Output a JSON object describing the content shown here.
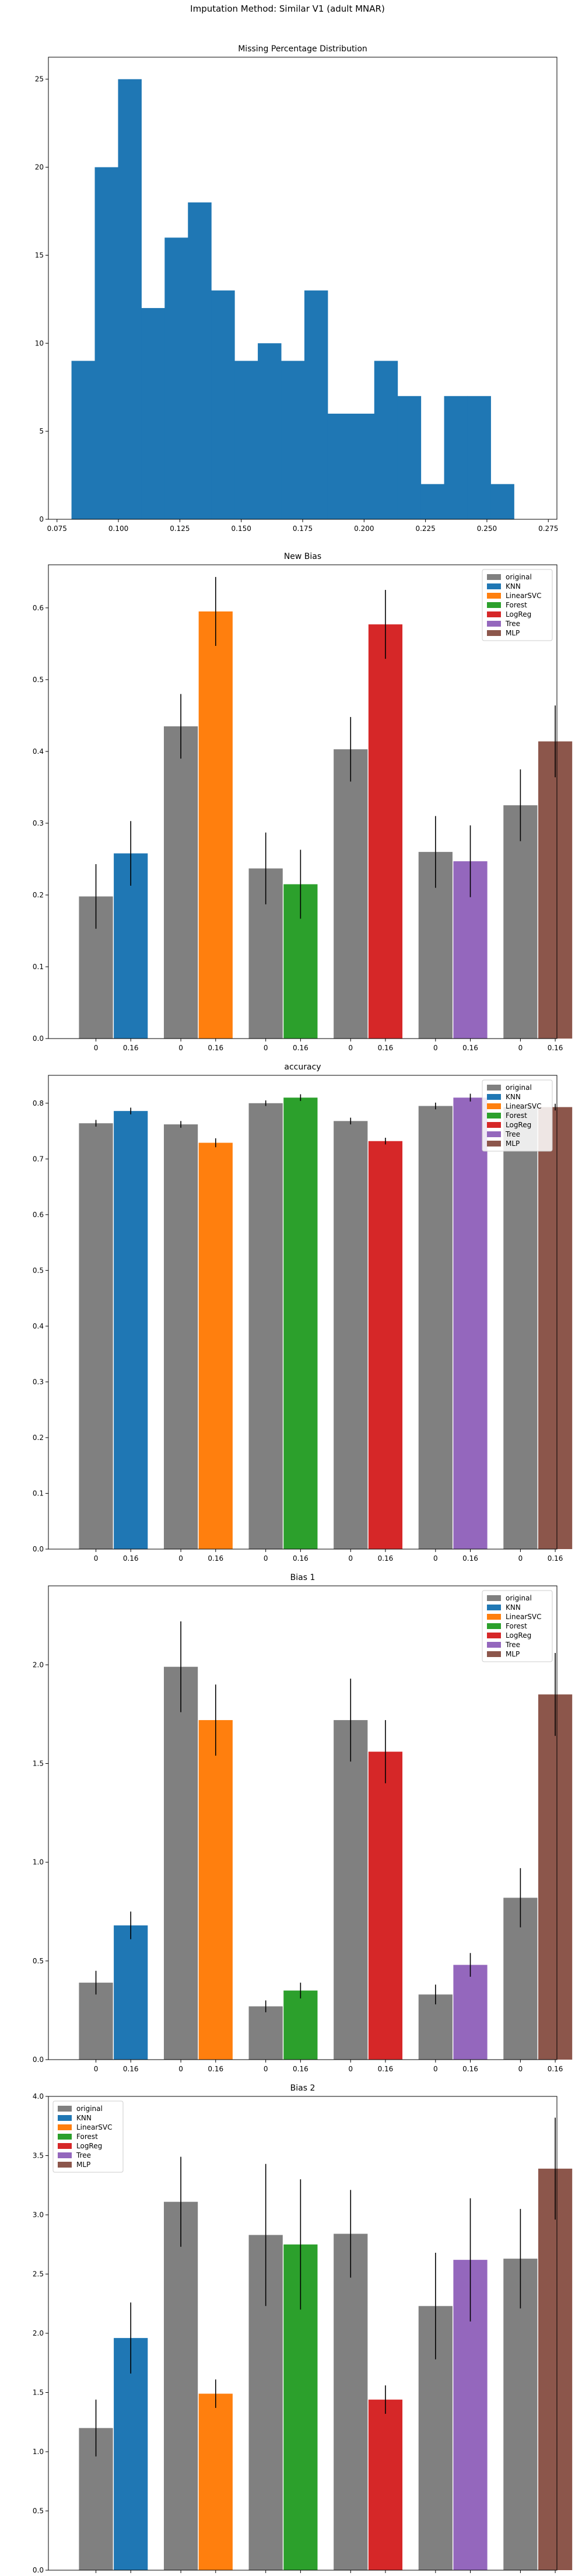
{
  "figure": {
    "suptitle": "Imputation Method: Similar V1 (adult MNAR)"
  },
  "colors": {
    "original": "#808080",
    "KNN": "#1f77b4",
    "LinearSVC": "#ff7f0e",
    "Forest": "#2ca02c",
    "LogReg": "#d62728",
    "Tree": "#9467bd",
    "MLP": "#8c564b",
    "hist": "#1f77b4"
  },
  "chart_data": [
    {
      "type": "bar",
      "subtype": "histogram",
      "title": "Missing Percentage Distribution",
      "xlim": [
        0.0715,
        0.2785
      ],
      "ylim": [
        0,
        26.25
      ],
      "xticks": [
        "0.075",
        "0.100",
        "0.125",
        "0.150",
        "0.175",
        "0.200",
        "0.225",
        "0.250",
        "0.275"
      ],
      "xtick_values": [
        0.075,
        0.1,
        0.125,
        0.15,
        0.175,
        0.2,
        0.225,
        0.25,
        0.275
      ],
      "yticks": [
        "0",
        "5",
        "10",
        "15",
        "20",
        "25"
      ],
      "ytick_values": [
        0,
        5,
        10,
        15,
        20,
        25
      ],
      "bin_start": 0.0809,
      "bin_width": 0.00948,
      "values": [
        9,
        20,
        25,
        12,
        16,
        18,
        13,
        9,
        10,
        9,
        13,
        6,
        6,
        9,
        7,
        2,
        7,
        7,
        2
      ],
      "grid": false
    },
    {
      "type": "bar",
      "title": "New Bias",
      "categories": [
        "0",
        "0.16"
      ],
      "methods": [
        "KNN",
        "LinearSVC",
        "Forest",
        "LogReg",
        "Tree",
        "MLP"
      ],
      "original_values": [
        0.198,
        0.435,
        0.237,
        0.403,
        0.26,
        0.325
      ],
      "original_errors": [
        0.045,
        0.045,
        0.05,
        0.045,
        0.05,
        0.05
      ],
      "method_values": [
        0.258,
        0.595,
        0.215,
        0.577,
        0.247,
        0.414
      ],
      "method_errors": [
        0.045,
        0.048,
        0.048,
        0.048,
        0.05,
        0.05
      ],
      "ylim": [
        0,
        0.66
      ],
      "yticks": [
        "0.0",
        "0.1",
        "0.2",
        "0.3",
        "0.4",
        "0.5",
        "0.6"
      ],
      "ytick_values": [
        0,
        0.1,
        0.2,
        0.3,
        0.4,
        0.5,
        0.6
      ],
      "legend": [
        "original",
        "KNN",
        "LinearSVC",
        "Forest",
        "LogReg",
        "Tree",
        "MLP"
      ],
      "legend_position": "top-right"
    },
    {
      "type": "bar",
      "title": "accuracy",
      "categories": [
        "0",
        "0.16"
      ],
      "methods": [
        "KNN",
        "LinearSVC",
        "Forest",
        "LogReg",
        "Tree",
        "MLP"
      ],
      "original_values": [
        0.764,
        0.762,
        0.8,
        0.768,
        0.795,
        0.793
      ],
      "original_errors": [
        0.006,
        0.006,
        0.005,
        0.006,
        0.006,
        0.006
      ],
      "method_values": [
        0.786,
        0.729,
        0.81,
        0.732,
        0.81,
        0.793
      ],
      "method_errors": [
        0.006,
        0.008,
        0.006,
        0.006,
        0.007,
        0.006
      ],
      "ylim": [
        0,
        0.85
      ],
      "yticks": [
        "0.0",
        "0.1",
        "0.2",
        "0.3",
        "0.4",
        "0.5",
        "0.6",
        "0.7",
        "0.8"
      ],
      "ytick_values": [
        0,
        0.1,
        0.2,
        0.3,
        0.4,
        0.5,
        0.6,
        0.7,
        0.8
      ],
      "legend": [
        "original",
        "KNN",
        "LinearSVC",
        "Forest",
        "LogReg",
        "Tree",
        "MLP"
      ],
      "legend_position": "top-right"
    },
    {
      "type": "bar",
      "title": "Bias 1",
      "categories": [
        "0",
        "0.16"
      ],
      "methods": [
        "KNN",
        "LinearSVC",
        "Forest",
        "LogReg",
        "Tree",
        "MLP"
      ],
      "original_values": [
        0.39,
        1.99,
        0.27,
        1.72,
        0.33,
        0.82
      ],
      "original_errors": [
        0.06,
        0.23,
        0.03,
        0.21,
        0.05,
        0.15
      ],
      "method_values": [
        0.68,
        1.72,
        0.35,
        1.56,
        0.48,
        1.85
      ],
      "method_errors": [
        0.07,
        0.18,
        0.04,
        0.16,
        0.06,
        0.21
      ],
      "ylim": [
        0,
        2.4
      ],
      "yticks": [
        "0.0",
        "0.5",
        "1.0",
        "1.5",
        "2.0"
      ],
      "ytick_values": [
        0,
        0.5,
        1.0,
        1.5,
        2.0
      ],
      "legend": [
        "original",
        "KNN",
        "LinearSVC",
        "Forest",
        "LogReg",
        "Tree",
        "MLP"
      ],
      "legend_position": "top-right"
    },
    {
      "type": "bar",
      "title": "Bias 2",
      "categories": [
        "0",
        "0.16"
      ],
      "methods": [
        "KNN",
        "LinearSVC",
        "Forest",
        "LogReg",
        "Tree",
        "MLP"
      ],
      "original_values": [
        1.2,
        3.11,
        2.83,
        2.84,
        2.23,
        2.63
      ],
      "original_errors": [
        0.24,
        0.38,
        0.6,
        0.37,
        0.45,
        0.42
      ],
      "method_values": [
        1.96,
        1.49,
        2.75,
        1.44,
        2.62,
        3.39
      ],
      "method_errors": [
        0.3,
        0.12,
        0.55,
        0.12,
        0.52,
        0.43
      ],
      "ylim": [
        0,
        4.0
      ],
      "yticks": [
        "0.0",
        "0.5",
        "1.0",
        "1.5",
        "2.0",
        "2.5",
        "3.0",
        "3.5",
        "4.0"
      ],
      "ytick_values": [
        0,
        0.5,
        1.0,
        1.5,
        2.0,
        2.5,
        3.0,
        3.5,
        4.0
      ],
      "legend": [
        "original",
        "KNN",
        "LinearSVC",
        "Forest",
        "LogReg",
        "Tree",
        "MLP"
      ],
      "legend_position": "top-left"
    }
  ]
}
